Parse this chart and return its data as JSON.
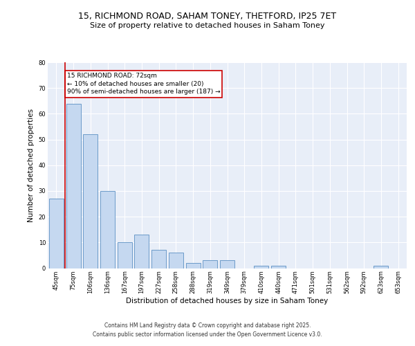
{
  "title": "15, RICHMOND ROAD, SAHAM TONEY, THETFORD, IP25 7ET",
  "subtitle": "Size of property relative to detached houses in Saham Toney",
  "xlabel": "Distribution of detached houses by size in Saham Toney",
  "ylabel": "Number of detached properties",
  "categories": [
    "45sqm",
    "75sqm",
    "106sqm",
    "136sqm",
    "167sqm",
    "197sqm",
    "227sqm",
    "258sqm",
    "288sqm",
    "319sqm",
    "349sqm",
    "379sqm",
    "410sqm",
    "440sqm",
    "471sqm",
    "501sqm",
    "531sqm",
    "562sqm",
    "592sqm",
    "623sqm",
    "653sqm"
  ],
  "values": [
    27,
    64,
    52,
    30,
    10,
    13,
    7,
    6,
    2,
    3,
    3,
    0,
    1,
    1,
    0,
    0,
    0,
    0,
    0,
    1,
    0
  ],
  "bar_color": "#c5d8f0",
  "bar_edge_color": "#5a8fc2",
  "highlight_line_color": "#cc0000",
  "annotation_text": "15 RICHMOND ROAD: 72sqm\n← 10% of detached houses are smaller (20)\n90% of semi-detached houses are larger (187) →",
  "annotation_box_color": "#cc0000",
  "ylim": [
    0,
    80
  ],
  "yticks": [
    0,
    10,
    20,
    30,
    40,
    50,
    60,
    70,
    80
  ],
  "footer_line1": "Contains HM Land Registry data © Crown copyright and database right 2025.",
  "footer_line2": "Contains public sector information licensed under the Open Government Licence v3.0.",
  "background_color": "#e8eef8",
  "grid_color": "#ffffff",
  "title_fontsize": 9,
  "subtitle_fontsize": 8,
  "tick_fontsize": 6,
  "label_fontsize": 7.5,
  "annotation_fontsize": 6.5,
  "footer_fontsize": 5.5
}
